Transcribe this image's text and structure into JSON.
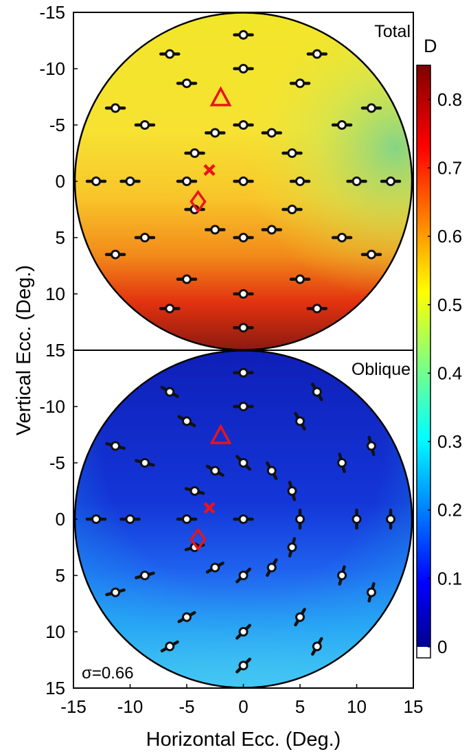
{
  "chart_data": [
    {
      "type": "heatmap",
      "panel_label": "Total",
      "xlabel": "Horizontal Ecc. (Deg.)",
      "ylabel": "Vertical Ecc. (Deg.)",
      "xlim": [
        -15,
        15
      ],
      "ylim": [
        -15,
        15
      ],
      "y_axis_direction": "down",
      "x_ticks": [
        "-15",
        "-10",
        "-5",
        "0",
        "5",
        "10",
        "15"
      ],
      "y_ticks": [
        "-15",
        "-10",
        "-5",
        "0",
        "5",
        "10",
        "15"
      ],
      "field_radius_deg": 15,
      "colormap": "jet",
      "color_field_samples": [
        {
          "x": 0,
          "y": -13,
          "D": 0.52
        },
        {
          "x": 0,
          "y": -5,
          "D": 0.52
        },
        {
          "x": 0,
          "y": 0,
          "D": 0.55
        },
        {
          "x": 0,
          "y": 5,
          "D": 0.62
        },
        {
          "x": 0,
          "y": 10,
          "D": 0.72
        },
        {
          "x": 0,
          "y": 13.5,
          "D": 0.8
        },
        {
          "x": 12,
          "y": -4,
          "D": 0.42
        },
        {
          "x": -12,
          "y": 0,
          "D": 0.55
        },
        {
          "x": 10,
          "y": 8,
          "D": 0.6
        }
      ],
      "markers": [
        {
          "symbol": "triangle",
          "x": -2,
          "y": -7.5,
          "color": "#e8141c"
        },
        {
          "symbol": "x",
          "x": -3,
          "y": -1,
          "color": "#e8141c"
        },
        {
          "symbol": "diamond",
          "x": -4,
          "y": 1.8,
          "color": "#e8141c"
        }
      ]
    },
    {
      "type": "heatmap",
      "panel_label": "Oblique",
      "xlabel": "Horizontal Ecc. (Deg.)",
      "ylabel": "Vertical Ecc. (Deg.)",
      "xlim": [
        -15,
        15
      ],
      "ylim": [
        -15,
        15
      ],
      "y_axis_direction": "down",
      "x_ticks": [
        "-15",
        "-10",
        "-5",
        "0",
        "5",
        "10",
        "15"
      ],
      "y_ticks": [
        "-15",
        "-10",
        "-5",
        "0",
        "5",
        "10",
        "15"
      ],
      "field_radius_deg": 15,
      "colormap": "jet",
      "annotation": "σ=0.66",
      "color_field_samples": [
        {
          "x": 0,
          "y": -10,
          "D": 0.05
        },
        {
          "x": 0,
          "y": 0,
          "D": 0.07
        },
        {
          "x": 0,
          "y": 5,
          "D": 0.12
        },
        {
          "x": 0,
          "y": 10,
          "D": 0.2
        },
        {
          "x": 0,
          "y": 14,
          "D": 0.3
        },
        {
          "x": -13,
          "y": 5,
          "D": 0.2
        },
        {
          "x": 13,
          "y": 5,
          "D": 0.22
        }
      ],
      "markers": [
        {
          "symbol": "triangle",
          "x": -2,
          "y": -7.5,
          "color": "#e8141c"
        },
        {
          "symbol": "x",
          "x": -3,
          "y": -1,
          "color": "#e8141c"
        },
        {
          "symbol": "diamond",
          "x": -4,
          "y": 1.8,
          "color": "#e8141c"
        }
      ]
    }
  ],
  "sample_points": [
    [
      0,
      -13
    ],
    [
      -6.5,
      -11.3
    ],
    [
      6.5,
      -11.3
    ],
    [
      0,
      -10
    ],
    [
      -5,
      -8.7
    ],
    [
      5,
      -8.7
    ],
    [
      -11.3,
      -6.5
    ],
    [
      11.3,
      -6.5
    ],
    [
      -8.7,
      -5
    ],
    [
      0,
      -5
    ],
    [
      8.7,
      -5
    ],
    [
      -2.5,
      -4.3
    ],
    [
      2.5,
      -4.3
    ],
    [
      -4.3,
      -2.5
    ],
    [
      4.3,
      -2.5
    ],
    [
      -13,
      0
    ],
    [
      -10,
      0
    ],
    [
      -5,
      0
    ],
    [
      0,
      0
    ],
    [
      5,
      0
    ],
    [
      10,
      0
    ],
    [
      13,
      0
    ],
    [
      -4.3,
      2.5
    ],
    [
      4.3,
      2.5
    ],
    [
      -2.5,
      4.3
    ],
    [
      2.5,
      4.3
    ],
    [
      -8.7,
      5
    ],
    [
      0,
      5
    ],
    [
      8.7,
      5
    ],
    [
      -11.3,
      6.5
    ],
    [
      11.3,
      6.5
    ],
    [
      -5,
      8.7
    ],
    [
      5,
      8.7
    ],
    [
      0,
      10
    ],
    [
      -6.5,
      11.3
    ],
    [
      6.5,
      11.3
    ],
    [
      0,
      13
    ]
  ],
  "colorbar": {
    "label": "D",
    "ticks": [
      "0",
      "0.1",
      "0.2",
      "0.3",
      "0.4",
      "0.5",
      "0.6",
      "0.7",
      "0.8"
    ],
    "range": [
      0,
      0.85
    ],
    "colormap": "jet"
  },
  "colors": {
    "marker_red": "#e8141c",
    "glyph_black": "#111111"
  }
}
